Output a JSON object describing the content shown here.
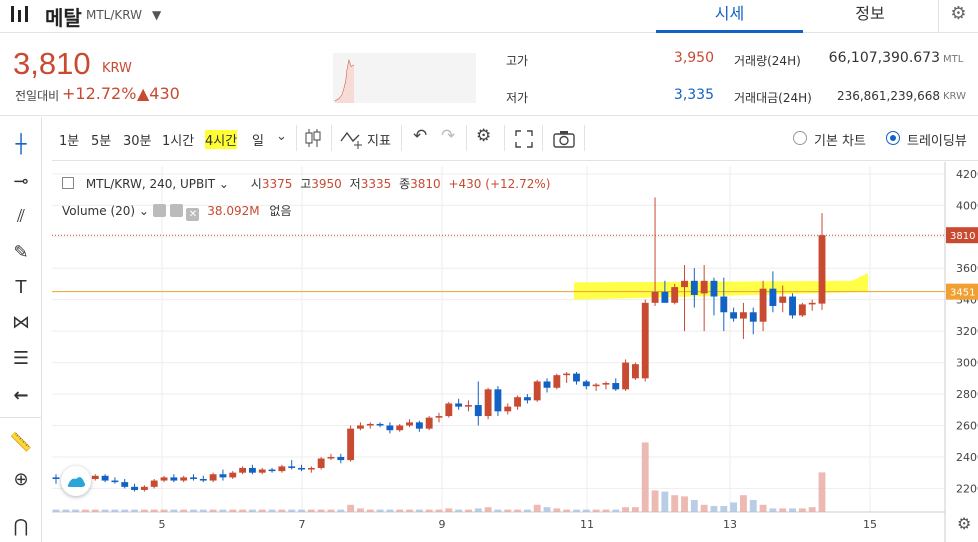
{
  "header": {
    "coin_name": "메탈",
    "pair": "MTL/KRW",
    "tabs": [
      "시세",
      "정보"
    ]
  },
  "summary": {
    "price": "3,810",
    "price_unit": "KRW",
    "change_label": "전일대비",
    "change_rate": "+12.72%",
    "change_amount": "▲430",
    "high_label": "고가",
    "high_value": "3,950",
    "low_label": "저가",
    "low_value": "3,335",
    "volume_label": "거래량(24H)",
    "volume_value": "66,107,390.673",
    "volume_unit": "MTL",
    "amount_label": "거래대금(24H)",
    "amount_value": "236,861,239,668",
    "amount_unit": "KRW"
  },
  "toolbar": {
    "timeframes": [
      "1분",
      "5분",
      "30분",
      "1시간",
      "4시간",
      "일"
    ],
    "selected_timeframe": "4시간",
    "indicator_label": "지표",
    "basic_chart_label": "기본 차트",
    "tradingview_label": "트레이딩뷰"
  },
  "legend": {
    "symbol": "MTL/KRW, 240, UPBIT",
    "open_label": "시",
    "open_value": "3375",
    "high_label": "고",
    "high_value": "3950",
    "low_label": "저",
    "low_value": "3335",
    "close_label": "종",
    "close_value": "3810",
    "change": "+430 (+12.72%)",
    "volume_label": "Volume (20)",
    "volume_value": "38.092M",
    "volume_extra": "없음"
  },
  "colors": {
    "up": "#c84a31",
    "down": "#1261c4",
    "highlight": "#ffff33",
    "support_line": "#f0a030"
  },
  "chart_data": {
    "type": "candlestick",
    "x_ticks": [
      "5",
      "7",
      "9",
      "11",
      "13",
      "15"
    ],
    "y_ticks": [
      2200,
      2400,
      2600,
      2800,
      3000,
      3200,
      3400,
      3600,
      3800,
      4000,
      4200
    ],
    "ylim": [
      2050,
      4250
    ],
    "price_label": "3810",
    "level_label": "3451",
    "level_value": 3451,
    "candles": [
      [
        2270,
        2290,
        2230,
        2260
      ],
      [
        2260,
        2280,
        2220,
        2240
      ],
      [
        2240,
        2260,
        2210,
        2230
      ],
      [
        2230,
        2270,
        2220,
        2260
      ],
      [
        2260,
        2290,
        2250,
        2280
      ],
      [
        2280,
        2290,
        2240,
        2250
      ],
      [
        2250,
        2270,
        2230,
        2240
      ],
      [
        2240,
        2260,
        2200,
        2210
      ],
      [
        2210,
        2230,
        2180,
        2190
      ],
      [
        2190,
        2220,
        2180,
        2210
      ],
      [
        2210,
        2260,
        2200,
        2250
      ],
      [
        2250,
        2280,
        2240,
        2270
      ],
      [
        2270,
        2290,
        2240,
        2250
      ],
      [
        2250,
        2280,
        2240,
        2270
      ],
      [
        2270,
        2290,
        2250,
        2260
      ],
      [
        2260,
        2280,
        2240,
        2250
      ],
      [
        2250,
        2300,
        2240,
        2290
      ],
      [
        2290,
        2320,
        2250,
        2270
      ],
      [
        2270,
        2310,
        2260,
        2300
      ],
      [
        2300,
        2340,
        2290,
        2330
      ],
      [
        2330,
        2350,
        2290,
        2300
      ],
      [
        2300,
        2330,
        2290,
        2320
      ],
      [
        2320,
        2330,
        2300,
        2310
      ],
      [
        2310,
        2350,
        2300,
        2340
      ],
      [
        2340,
        2380,
        2320,
        2330
      ],
      [
        2330,
        2350,
        2310,
        2320
      ],
      [
        2320,
        2340,
        2300,
        2330
      ],
      [
        2330,
        2400,
        2320,
        2390
      ],
      [
        2390,
        2420,
        2380,
        2400
      ],
      [
        2400,
        2420,
        2360,
        2380
      ],
      [
        2380,
        2600,
        2370,
        2580
      ],
      [
        2580,
        2620,
        2570,
        2600
      ],
      [
        2600,
        2620,
        2580,
        2610
      ],
      [
        2610,
        2620,
        2590,
        2600
      ],
      [
        2600,
        2620,
        2550,
        2570
      ],
      [
        2570,
        2610,
        2560,
        2600
      ],
      [
        2600,
        2640,
        2590,
        2620
      ],
      [
        2620,
        2630,
        2560,
        2580
      ],
      [
        2580,
        2660,
        2570,
        2650
      ],
      [
        2650,
        2680,
        2620,
        2660
      ],
      [
        2660,
        2750,
        2650,
        2740
      ],
      [
        2740,
        2770,
        2700,
        2720
      ],
      [
        2720,
        2760,
        2690,
        2730
      ],
      [
        2730,
        2880,
        2600,
        2660
      ],
      [
        2660,
        2840,
        2640,
        2830
      ],
      [
        2830,
        2850,
        2660,
        2690
      ],
      [
        2690,
        2740,
        2670,
        2720
      ],
      [
        2720,
        2790,
        2700,
        2780
      ],
      [
        2780,
        2800,
        2740,
        2760
      ],
      [
        2760,
        2890,
        2750,
        2880
      ],
      [
        2880,
        2900,
        2810,
        2840
      ],
      [
        2840,
        2930,
        2830,
        2920
      ],
      [
        2920,
        2940,
        2870,
        2930
      ],
      [
        2930,
        2940,
        2860,
        2880
      ],
      [
        2880,
        2890,
        2830,
        2850
      ],
      [
        2850,
        2870,
        2820,
        2860
      ],
      [
        2860,
        2880,
        2830,
        2870
      ],
      [
        2870,
        2900,
        2820,
        2830
      ],
      [
        2830,
        3020,
        2820,
        3000
      ],
      [
        2900,
        3000,
        2890,
        2990
      ],
      [
        2900,
        3400,
        2880,
        3380
      ],
      [
        3380,
        4050,
        3360,
        3450
      ],
      [
        3450,
        3520,
        3400,
        3380
      ],
      [
        3380,
        3500,
        3370,
        3480
      ],
      [
        3480,
        3620,
        3200,
        3520
      ],
      [
        3520,
        3600,
        3350,
        3430
      ],
      [
        3440,
        3620,
        3200,
        3520
      ],
      [
        3520,
        3540,
        3300,
        3420
      ],
      [
        3420,
        3540,
        3200,
        3320
      ],
      [
        3320,
        3350,
        3260,
        3280
      ],
      [
        3280,
        3380,
        3150,
        3320
      ],
      [
        3320,
        3350,
        3180,
        3260
      ],
      [
        3260,
        3520,
        3200,
        3470
      ],
      [
        3470,
        3580,
        3320,
        3360
      ],
      [
        3380,
        3490,
        3320,
        3420
      ],
      [
        3420,
        3440,
        3280,
        3300
      ],
      [
        3300,
        3380,
        3290,
        3370
      ],
      [
        3370,
        3400,
        3330,
        3380
      ],
      [
        3375,
        3950,
        3335,
        3810
      ]
    ],
    "volumes": [
      0.02,
      0.02,
      0.02,
      0.02,
      0.02,
      0.02,
      0.02,
      0.02,
      0.02,
      0.02,
      0.02,
      0.02,
      0.02,
      0.02,
      0.02,
      0.02,
      0.02,
      0.02,
      0.02,
      0.02,
      0.02,
      0.02,
      0.02,
      0.02,
      0.02,
      0.02,
      0.02,
      0.02,
      0.02,
      0.02,
      0.06,
      0.03,
      0.02,
      0.02,
      0.02,
      0.02,
      0.02,
      0.02,
      0.02,
      0.02,
      0.03,
      0.02,
      0.02,
      0.03,
      0.04,
      0.02,
      0.02,
      0.02,
      0.02,
      0.06,
      0.04,
      0.03,
      0.02,
      0.02,
      0.02,
      0.02,
      0.02,
      0.02,
      0.04,
      0.04,
      0.58,
      0.18,
      0.17,
      0.14,
      0.13,
      0.1,
      0.06,
      0.05,
      0.05,
      0.08,
      0.14,
      0.1,
      0.06,
      0.03,
      0.03,
      0.03,
      0.03,
      0.04,
      0.33
    ]
  }
}
